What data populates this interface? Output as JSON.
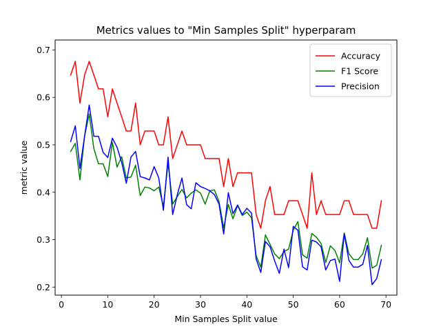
{
  "chart_data": {
    "type": "line",
    "title": "Metrics values to \"Min Samples Split\" hyperparam",
    "xlabel": "Min Samples Split value",
    "ylabel": "metric value",
    "xlim": [
      -1.35,
      72.35
    ],
    "ylim": [
      0.183,
      0.721
    ],
    "xticks": [
      0,
      10,
      20,
      30,
      40,
      50,
      60,
      70
    ],
    "yticks": [
      0.2,
      0.3,
      0.4,
      0.5,
      0.6,
      0.7
    ],
    "ytick_labels": [
      "0.2",
      "0.3",
      "0.4",
      "0.5",
      "0.6",
      "0.7"
    ],
    "grid": false,
    "legend_position": "upper right",
    "x": [
      2,
      3,
      4,
      5,
      6,
      7,
      8,
      9,
      10,
      11,
      12,
      13,
      14,
      15,
      16,
      17,
      18,
      19,
      20,
      21,
      22,
      23,
      24,
      25,
      26,
      27,
      28,
      29,
      30,
      31,
      32,
      33,
      34,
      35,
      36,
      37,
      38,
      39,
      40,
      41,
      42,
      43,
      44,
      45,
      46,
      47,
      48,
      49,
      50,
      51,
      52,
      53,
      54,
      55,
      56,
      57,
      58,
      59,
      60,
      61,
      62,
      63,
      64,
      65,
      66,
      67,
      68,
      69
    ],
    "series": [
      {
        "name": "Accuracy",
        "color": "#ff0000",
        "values": [
          0.647,
          0.676,
          0.588,
          0.647,
          0.676,
          0.647,
          0.618,
          0.618,
          0.559,
          0.618,
          0.588,
          0.559,
          0.529,
          0.529,
          0.588,
          0.5,
          0.529,
          0.529,
          0.529,
          0.5,
          0.5,
          0.559,
          0.471,
          0.5,
          0.529,
          0.5,
          0.5,
          0.5,
          0.5,
          0.471,
          0.471,
          0.471,
          0.471,
          0.412,
          0.471,
          0.412,
          0.441,
          0.441,
          0.441,
          0.441,
          0.353,
          0.324,
          0.382,
          0.412,
          0.353,
          0.353,
          0.353,
          0.382,
          0.382,
          0.382,
          0.353,
          0.324,
          0.441,
          0.353,
          0.382,
          0.353,
          0.353,
          0.353,
          0.353,
          0.382,
          0.382,
          0.353,
          0.353,
          0.353,
          0.353,
          0.324,
          0.324,
          0.382
        ]
      },
      {
        "name": "F1 Score",
        "color": "#008000",
        "values": [
          0.486,
          0.503,
          0.426,
          0.518,
          0.565,
          0.492,
          0.46,
          0.46,
          0.433,
          0.505,
          0.453,
          0.475,
          0.43,
          0.432,
          0.457,
          0.393,
          0.411,
          0.409,
          0.403,
          0.411,
          0.37,
          0.462,
          0.375,
          0.391,
          0.406,
          0.388,
          0.398,
          0.405,
          0.398,
          0.375,
          0.403,
          0.405,
          0.38,
          0.325,
          0.374,
          0.344,
          0.372,
          0.351,
          0.358,
          0.346,
          0.266,
          0.242,
          0.31,
          0.29,
          0.27,
          0.26,
          0.275,
          0.28,
          0.32,
          0.338,
          0.268,
          0.261,
          0.313,
          0.305,
          0.292,
          0.252,
          0.287,
          0.277,
          0.251,
          0.314,
          0.27,
          0.258,
          0.258,
          0.27,
          0.304,
          0.24,
          0.246,
          0.288
        ]
      },
      {
        "name": "Precision",
        "color": "#0000ff",
        "values": [
          0.507,
          0.54,
          0.45,
          0.518,
          0.584,
          0.518,
          0.518,
          0.484,
          0.473,
          0.514,
          0.495,
          0.463,
          0.419,
          0.474,
          0.486,
          0.433,
          0.43,
          0.426,
          0.454,
          0.43,
          0.362,
          0.474,
          0.353,
          0.395,
          0.43,
          0.374,
          0.365,
          0.42,
          0.412,
          0.408,
          0.403,
          0.395,
          0.375,
          0.312,
          0.399,
          0.355,
          0.373,
          0.353,
          0.366,
          0.356,
          0.259,
          0.231,
          0.296,
          0.285,
          0.255,
          0.229,
          0.28,
          0.241,
          0.328,
          0.32,
          0.243,
          0.236,
          0.299,
          0.295,
          0.285,
          0.236,
          0.256,
          0.259,
          0.212,
          0.312,
          0.256,
          0.242,
          0.242,
          0.248,
          0.288,
          0.205,
          0.218,
          0.258
        ]
      }
    ]
  }
}
